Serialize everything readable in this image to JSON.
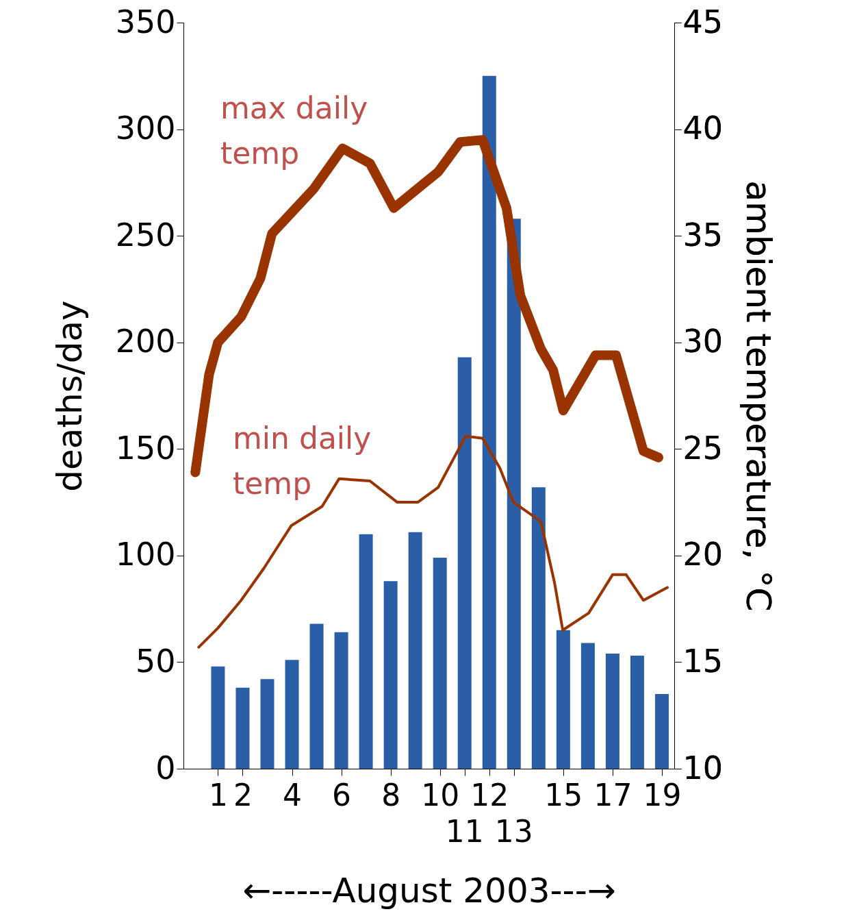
{
  "chart_data": {
    "type": "bar",
    "ylabel": "deaths/day",
    "y2label": "ambient temperature, °C",
    "xlabel": "←-----August 2003---→",
    "x": [
      1,
      2,
      3,
      4,
      5,
      6,
      7,
      8,
      9,
      10,
      11,
      12,
      13,
      14,
      15,
      16,
      17,
      18,
      19
    ],
    "xlim": [
      -0.4,
      19.5
    ],
    "xticks": [
      1,
      2,
      4,
      6,
      8,
      10,
      {
        "value": 11,
        "label": null
      },
      12,
      {
        "value": 13,
        "label": null
      },
      15,
      17,
      19
    ],
    "annotations": [
      "11",
      "13"
    ],
    "ylim": [
      0,
      350
    ],
    "yticks": [
      0,
      50,
      100,
      150,
      200,
      250,
      300,
      350
    ],
    "y2lim": [
      10,
      45
    ],
    "y2ticks": [
      10,
      15,
      20,
      25,
      30,
      35,
      40,
      45
    ],
    "series": [
      {
        "color": "#2a5fa8",
        "values": [
          48,
          38,
          42,
          51,
          68,
          64,
          110,
          88,
          111,
          99,
          193,
          325,
          258,
          132,
          65,
          59,
          54,
          53,
          35
        ]
      },
      {
        "type": "line",
        "name": "max daily temp",
        "color": "#993300",
        "axis": "y2",
        "x": [
          0.08,
          0.64,
          1,
          1.94,
          2.72,
          3.19,
          4.88,
          6.05,
          7.16,
          8.13,
          9.93,
          10.82,
          11.73,
          12.7,
          13.26,
          14.09,
          14.59,
          15,
          16.31,
          17.14,
          18.25,
          18.86
        ],
        "values": [
          23.9,
          28.5,
          30,
          31.2,
          33,
          35.1,
          37.2,
          39.1,
          38.4,
          36.3,
          38,
          39.4,
          39.5,
          36.3,
          32.2,
          29.7,
          28.7,
          26.8,
          29.4,
          29.4,
          24.9,
          24.6
        ]
      },
      {
        "type": "line",
        "name": "min daily temp",
        "color": "#993300",
        "axis": "y2",
        "x": [
          0.22,
          1,
          1.94,
          2.86,
          3.97,
          5.22,
          5.91,
          7.16,
          8.27,
          9.1,
          9.93,
          11.04,
          11.73,
          12.43,
          12.98,
          14.09,
          14.65,
          14.98,
          16.03,
          17,
          17.55,
          18.25,
          19.22
        ],
        "values": [
          15.7,
          16.6,
          17.9,
          19.4,
          21.4,
          22.3,
          23.6,
          23.5,
          22.5,
          22.5,
          23.2,
          25.6,
          25.5,
          24.1,
          22.5,
          21.6,
          18.7,
          16.5,
          17.3,
          19.1,
          19.1,
          17.9,
          18.5
        ]
      }
    ]
  }
}
